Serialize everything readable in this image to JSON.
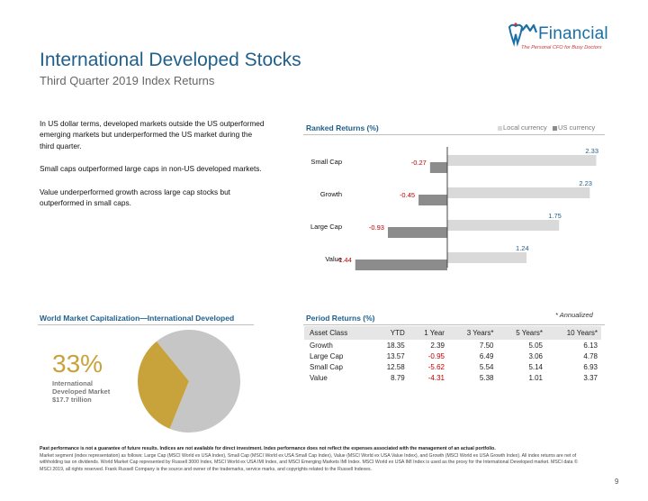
{
  "logo": {
    "brand": "Financial",
    "tagline": "The Personal CFO for Busy Doctors"
  },
  "title": "International Developed Stocks",
  "subtitle": "Third Quarter 2019 Index Returns",
  "body": [
    "In US dollar terms, developed markets outside the US outperformed emerging markets but underperformed the US market during the third quarter.",
    "Small caps outperformed large caps in non-US developed markets.",
    "Value underperformed growth across large cap stocks but outperformed in small caps."
  ],
  "ranked": {
    "heading": "Ranked Returns (%)",
    "legend": [
      {
        "label": "Local currency",
        "color": "#d9d9d9"
      },
      {
        "label": "US currency",
        "color": "#8c8c8c"
      }
    ]
  },
  "chart_data": [
    {
      "type": "bar",
      "orientation": "horizontal",
      "title": "Ranked Returns (%)",
      "categories": [
        "Small Cap",
        "Growth",
        "Large Cap",
        "Value"
      ],
      "series": [
        {
          "name": "Local currency",
          "values": [
            2.33,
            2.23,
            1.75,
            1.24
          ],
          "color": "#d9d9d9"
        },
        {
          "name": "US currency",
          "values": [
            -0.27,
            -0.45,
            -0.93,
            -1.44
          ],
          "color": "#8c8c8c"
        }
      ],
      "value_labels": [
        "2.33",
        "2.23",
        "1.75",
        "1.24",
        "-0.27",
        "-0.45",
        "-0.93",
        "-1.44"
      ],
      "xlim": [
        -1.6,
        2.6
      ],
      "grid": false,
      "legend_position": "top-right"
    },
    {
      "type": "pie",
      "title": "World Market Capitalization—International Developed",
      "slices": [
        {
          "label": "International Developed Market",
          "value": 33,
          "color": "#c8a23a"
        },
        {
          "label": "Rest of world",
          "value": 67,
          "color": "#c6c6c6"
        }
      ]
    },
    {
      "type": "table",
      "title": "Period Returns (%)",
      "columns": [
        "Asset Class",
        "YTD",
        "1 Year",
        "3 Years*",
        "5 Years*",
        "10 Years*"
      ],
      "rows": [
        [
          "Growth",
          "18.35",
          "2.39",
          "7.50",
          "5.05",
          "6.13"
        ],
        [
          "Large Cap",
          "13.57",
          "-0.95",
          "6.49",
          "3.06",
          "4.78"
        ],
        [
          "Small Cap",
          "12.58",
          "-5.62",
          "5.54",
          "5.14",
          "6.93"
        ],
        [
          "Value",
          "8.79",
          "-4.31",
          "5.38",
          "1.01",
          "3.37"
        ]
      ]
    }
  ],
  "marketcap": {
    "heading": "World Market Capitalization—International Developed",
    "percent": "33%",
    "caption_lines": [
      "International",
      "Developed Market",
      "$17.7 trillion"
    ]
  },
  "period": {
    "heading": "Period Returns (%)",
    "annotation": "* Annualized"
  },
  "footer": {
    "bold": "Past performance is not a guarantee of future results. Indices are not available for direct investment. Index performance does not reflect the expenses associated with the management of an actual portfolio.",
    "text": "Market segment (index representation) as follows: Large Cap (MSCI World ex USA Index), Small Cap (MSCI World ex USA Small Cap Index), Value (MSCI World ex USA Value Index), and Growth (MSCI World ex USA Growth Index). All index returns are net of withholding tax on dividends. World Market Cap represented by Russell 3000 Index, MSCI World ex USA IMI Index, and MSCI Emerging Markets IMI Index. MSCI World ex USA IMI Index is used as the proxy for the International Developed market. MSCI data © MSCI 2019, all rights reserved. Frank Russell Company is the source and owner of the trademarks, service marks, and copyrights related to the Russell Indexes."
  },
  "page_number": "9"
}
